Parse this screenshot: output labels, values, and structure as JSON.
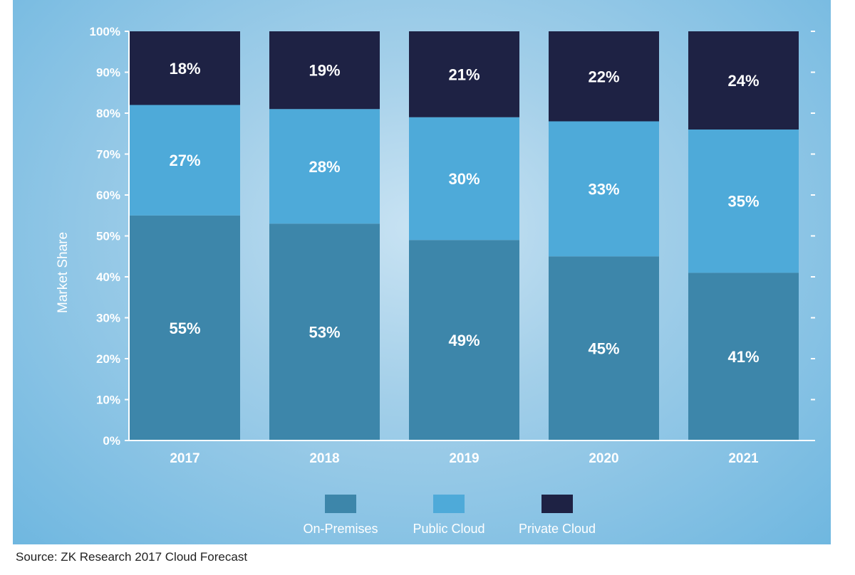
{
  "chart_data": {
    "type": "bar",
    "stacked": true,
    "categories": [
      "2017",
      "2018",
      "2019",
      "2020",
      "2021"
    ],
    "series": [
      {
        "name": "On-Premises",
        "values": [
          55,
          53,
          49,
          45,
          41
        ],
        "labels": [
          "55%",
          "53%",
          "49%",
          "45%",
          "41%"
        ],
        "color": "#3d86aa"
      },
      {
        "name": "Public Cloud",
        "values": [
          27,
          28,
          30,
          33,
          35
        ],
        "labels": [
          "27%",
          "28%",
          "30%",
          "33%",
          "35%"
        ],
        "color": "#4eaad9"
      },
      {
        "name": "Private Cloud",
        "values": [
          18,
          19,
          21,
          22,
          24
        ],
        "labels": [
          "18%",
          "19%",
          "21%",
          "22%",
          "24%"
        ],
        "color": "#1e2244"
      }
    ],
    "ylabel": "Market Share",
    "xlabel": "",
    "ylim": [
      0,
      100
    ],
    "yticks": [
      "0%",
      "10%",
      "20%",
      "30%",
      "40%",
      "50%",
      "60%",
      "70%",
      "80%",
      "90%",
      "100%"
    ],
    "legend_position": "bottom-center",
    "grid": false
  },
  "source": "Source: ZK Research 2017 Cloud Forecast",
  "colors": {
    "axis": "#ffffff",
    "panel_edge": "#6fb7e0"
  }
}
